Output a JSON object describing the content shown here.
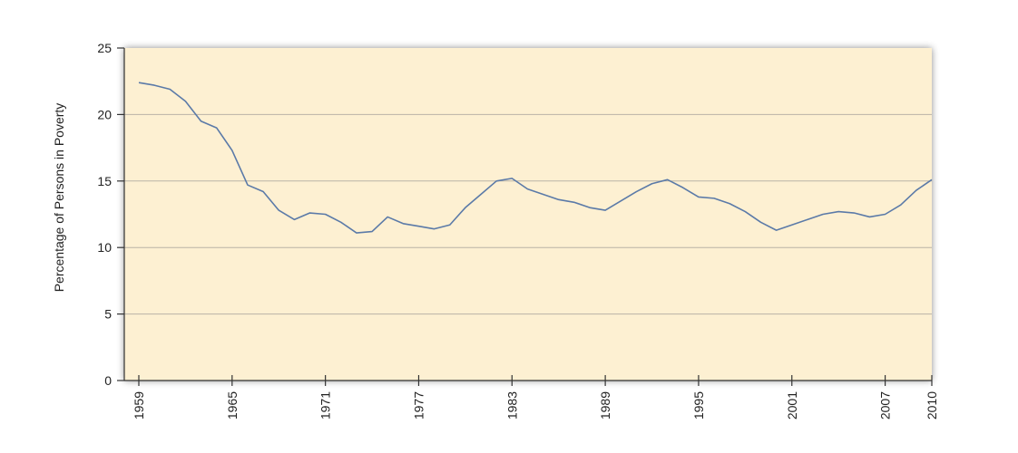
{
  "chart_data": {
    "type": "line",
    "y_label": "Percentage of Persons in Poverty",
    "x": [
      1959,
      1960,
      1961,
      1962,
      1963,
      1964,
      1965,
      1966,
      1967,
      1968,
      1969,
      1970,
      1971,
      1972,
      1973,
      1974,
      1975,
      1976,
      1977,
      1978,
      1979,
      1980,
      1981,
      1982,
      1983,
      1984,
      1985,
      1986,
      1987,
      1988,
      1989,
      1990,
      1991,
      1992,
      1993,
      1994,
      1995,
      1996,
      1997,
      1998,
      1999,
      2000,
      2001,
      2002,
      2003,
      2004,
      2005,
      2006,
      2007,
      2008,
      2009,
      2010
    ],
    "values": [
      22.4,
      22.2,
      21.9,
      21.0,
      19.5,
      19.0,
      17.3,
      14.7,
      14.2,
      12.8,
      12.1,
      12.6,
      12.5,
      11.9,
      11.1,
      11.2,
      12.3,
      11.8,
      11.6,
      11.4,
      11.7,
      13.0,
      14.0,
      15.0,
      15.2,
      14.4,
      14.0,
      13.6,
      13.4,
      13.0,
      12.8,
      13.5,
      14.2,
      14.8,
      15.1,
      14.5,
      13.8,
      13.7,
      13.3,
      12.7,
      11.9,
      11.3,
      11.7,
      12.1,
      12.5,
      12.7,
      12.6,
      12.3,
      12.5,
      13.2,
      14.3,
      15.1
    ],
    "color": "#5b7aa8",
    "xlim": [
      1959,
      2010
    ],
    "xticks": [
      1959,
      1965,
      1971,
      1977,
      1983,
      1989,
      1995,
      2001,
      2007,
      2010
    ],
    "ylim": [
      0,
      25
    ],
    "yticks": [
      0,
      5,
      10,
      15,
      20,
      25
    ],
    "grid": true
  }
}
